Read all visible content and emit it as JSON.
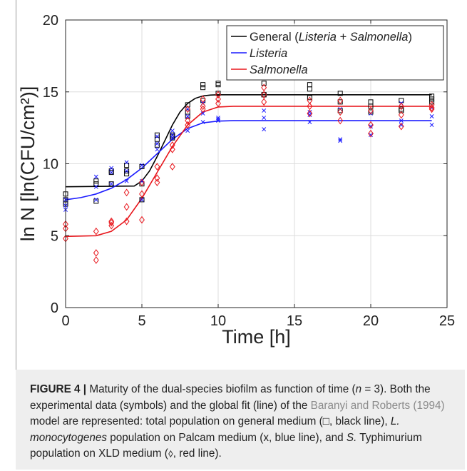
{
  "chart_data": {
    "type": "scatter",
    "title": "",
    "xlabel": "Time [h]",
    "ylabel": "ln N [ln(CFU/cm²)]",
    "xlim": [
      0,
      25
    ],
    "ylim": [
      0,
      20
    ],
    "xticks": [
      0,
      5,
      10,
      15,
      20,
      25
    ],
    "yticks": [
      0,
      5,
      10,
      15,
      20
    ],
    "grid": true,
    "legend_position": "top-right",
    "legend": [
      {
        "prefix": "General (",
        "italic": "Listeria",
        "mid": " + ",
        "italic2": "Salmonella",
        "suffix": ")",
        "color": "#000000"
      },
      {
        "prefix": "",
        "italic": "Listeria",
        "mid": "",
        "italic2": "",
        "suffix": "",
        "color": "#1a1aff"
      },
      {
        "prefix": "",
        "italic": "Salmonella",
        "mid": "",
        "italic2": "",
        "suffix": "",
        "color": "#e8161c"
      }
    ],
    "series": [
      {
        "name": "General (Listeria + Salmonella)",
        "color": "#000000",
        "marker": "square",
        "points": [
          [
            0,
            7.9
          ],
          [
            0,
            7.5
          ],
          [
            0,
            7.2
          ],
          [
            2,
            8.8
          ],
          [
            2,
            8.6
          ],
          [
            2,
            7.4
          ],
          [
            3,
            9.5
          ],
          [
            3,
            9.4
          ],
          [
            3,
            8.6
          ],
          [
            4,
            9.9
          ],
          [
            4,
            9.5
          ],
          [
            4,
            9.3
          ],
          [
            5,
            9.8
          ],
          [
            5,
            8.6
          ],
          [
            5,
            7.5
          ],
          [
            6,
            12.0
          ],
          [
            6,
            11.7
          ],
          [
            6,
            11.3
          ],
          [
            7,
            12.0
          ],
          [
            7,
            11.9
          ],
          [
            7,
            11.8
          ],
          [
            8,
            14.1
          ],
          [
            8,
            13.6
          ],
          [
            8,
            13.3
          ],
          [
            9,
            15.5
          ],
          [
            9,
            15.3
          ],
          [
            9,
            14.4
          ],
          [
            10,
            15.6
          ],
          [
            10,
            15.5
          ],
          [
            10,
            14.9
          ],
          [
            13,
            15.6
          ],
          [
            13,
            14.8
          ],
          [
            13,
            14.8
          ],
          [
            16,
            15.5
          ],
          [
            16,
            15.2
          ],
          [
            16,
            14.6
          ],
          [
            18,
            14.9
          ],
          [
            18,
            14.3
          ],
          [
            18,
            13.7
          ],
          [
            20,
            14.3
          ],
          [
            20,
            14.0
          ],
          [
            20,
            13.6
          ],
          [
            22,
            14.4
          ],
          [
            22,
            13.8
          ],
          [
            22,
            13.7
          ],
          [
            24,
            14.7
          ],
          [
            24,
            14.5
          ],
          [
            24,
            14.3
          ]
        ]
      },
      {
        "name": "Listeria",
        "color": "#1a1aff",
        "marker": "x",
        "points": [
          [
            0,
            7.5
          ],
          [
            0,
            7.1
          ],
          [
            0,
            6.8
          ],
          [
            2,
            9.1
          ],
          [
            2,
            8.4
          ],
          [
            2,
            7.5
          ],
          [
            3,
            9.7
          ],
          [
            3,
            9.4
          ],
          [
            3,
            8.6
          ],
          [
            4,
            10.1
          ],
          [
            4,
            9.5
          ],
          [
            4,
            8.8
          ],
          [
            5,
            9.9
          ],
          [
            5,
            8.8
          ],
          [
            5,
            7.5
          ],
          [
            6,
            11.9
          ],
          [
            6,
            11.4
          ],
          [
            6,
            11.0
          ],
          [
            7,
            12.3
          ],
          [
            7,
            12.0
          ],
          [
            7,
            11.8
          ],
          [
            8,
            13.8
          ],
          [
            8,
            13.3
          ],
          [
            8,
            12.3
          ],
          [
            9,
            14.2
          ],
          [
            9,
            13.5
          ],
          [
            9,
            12.9
          ],
          [
            10,
            13.2
          ],
          [
            10,
            13.1
          ],
          [
            10,
            13.0
          ],
          [
            13,
            13.7
          ],
          [
            13,
            13.2
          ],
          [
            13,
            12.4
          ],
          [
            16,
            13.6
          ],
          [
            16,
            13.4
          ],
          [
            16,
            12.9
          ],
          [
            18,
            13.8
          ],
          [
            18,
            11.7
          ],
          [
            18,
            11.6
          ],
          [
            20,
            13.5
          ],
          [
            20,
            12.6
          ],
          [
            20,
            12.0
          ],
          [
            22,
            14.2
          ],
          [
            22,
            13.0
          ],
          [
            22,
            12.7
          ],
          [
            24,
            13.9
          ],
          [
            24,
            13.3
          ],
          [
            24,
            12.7
          ]
        ]
      },
      {
        "name": "Salmonella",
        "color": "#e8161c",
        "marker": "diamond",
        "points": [
          [
            0,
            5.8
          ],
          [
            0,
            5.5
          ],
          [
            0,
            4.8
          ],
          [
            2,
            5.3
          ],
          [
            2,
            3.8
          ],
          [
            2,
            3.3
          ],
          [
            3,
            6.0
          ],
          [
            3,
            5.9
          ],
          [
            3,
            5.7
          ],
          [
            4,
            8.0
          ],
          [
            4,
            7.0
          ],
          [
            4,
            6.0
          ],
          [
            5,
            8.7
          ],
          [
            5,
            7.9
          ],
          [
            5,
            6.1
          ],
          [
            6,
            9.8
          ],
          [
            6,
            9.0
          ],
          [
            6,
            8.7
          ],
          [
            7,
            11.3
          ],
          [
            7,
            11.0
          ],
          [
            7,
            9.8
          ],
          [
            8,
            13.8
          ],
          [
            8,
            13.0
          ],
          [
            8,
            12.7
          ],
          [
            9,
            14.5
          ],
          [
            9,
            14.0
          ],
          [
            9,
            13.8
          ],
          [
            10,
            14.8
          ],
          [
            10,
            14.5
          ],
          [
            10,
            14.2
          ],
          [
            13,
            15.3
          ],
          [
            13,
            14.8
          ],
          [
            13,
            14.3
          ],
          [
            16,
            14.4
          ],
          [
            16,
            14.0
          ],
          [
            16,
            13.5
          ],
          [
            18,
            14.4
          ],
          [
            18,
            13.6
          ],
          [
            18,
            13.0
          ],
          [
            20,
            13.7
          ],
          [
            20,
            12.7
          ],
          [
            20,
            12.1
          ],
          [
            22,
            14.0
          ],
          [
            22,
            13.4
          ],
          [
            22,
            12.6
          ],
          [
            24,
            14.1
          ],
          [
            24,
            13.9
          ],
          [
            24,
            13.8
          ]
        ]
      }
    ],
    "fits": [
      {
        "name": "General (Listeria + Salmonella)",
        "color": "#000000",
        "points": [
          [
            0,
            8.4
          ],
          [
            4.5,
            8.45
          ],
          [
            5,
            8.8
          ],
          [
            5.5,
            9.5
          ],
          [
            6,
            10.5
          ],
          [
            6.5,
            11.6
          ],
          [
            7,
            12.7
          ],
          [
            7.5,
            13.6
          ],
          [
            8,
            14.2
          ],
          [
            8.5,
            14.55
          ],
          [
            9,
            14.72
          ],
          [
            9.5,
            14.78
          ],
          [
            10,
            14.8
          ],
          [
            24,
            14.8
          ]
        ]
      },
      {
        "name": "Listeria",
        "color": "#1a1aff",
        "points": [
          [
            0,
            7.5
          ],
          [
            1,
            7.65
          ],
          [
            2,
            7.9
          ],
          [
            3,
            8.3
          ],
          [
            4,
            8.9
          ],
          [
            5,
            9.7
          ],
          [
            6,
            10.7
          ],
          [
            7,
            11.7
          ],
          [
            8,
            12.45
          ],
          [
            9,
            12.85
          ],
          [
            10,
            12.97
          ],
          [
            11,
            13.0
          ],
          [
            24,
            13.0
          ]
        ]
      },
      {
        "name": "Salmonella",
        "color": "#e8161c",
        "points": [
          [
            0,
            4.95
          ],
          [
            2,
            5.0
          ],
          [
            3,
            5.3
          ],
          [
            4,
            6.1
          ],
          [
            5,
            7.6
          ],
          [
            6,
            9.4
          ],
          [
            7,
            11.2
          ],
          [
            8,
            12.7
          ],
          [
            9,
            13.6
          ],
          [
            10,
            13.95
          ],
          [
            11,
            14.0
          ],
          [
            24,
            14.0
          ]
        ]
      }
    ]
  },
  "caption": {
    "figure_label": "FIGURE 4 |",
    "part1": " Maturity of the dual-species biofilm as function of time (",
    "n_symbol": "n",
    "part2": " = 3). Both the experimental data (symbols) and the global fit (line) of the ",
    "reference": "Baranyi and Roberts (1994)",
    "part3": " model are represented: total population on general medium (□, black line), ",
    "species1": "L. monocytogenes",
    "part4": " population on Palcam medium (x, blue line), and ",
    "species2": "S.",
    "part5": " Typhimurium population on XLD medium (⬨, red line)."
  }
}
